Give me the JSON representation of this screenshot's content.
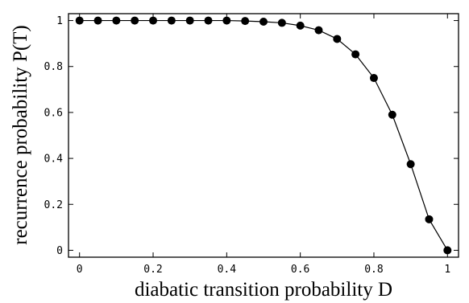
{
  "chart_data": {
    "type": "line",
    "title": "",
    "xlabel": "diabatic transition probability D",
    "ylabel": "recurrence probability  P(T)",
    "xlim": [
      -0.03,
      1.03
    ],
    "ylim": [
      -0.03,
      1.03
    ],
    "grid": false,
    "legend": "none",
    "x_ticks": [
      0,
      0.2,
      0.4,
      0.6,
      0.8,
      1
    ],
    "x_tick_labels": [
      "0",
      "0.2",
      "0.4",
      "0.6",
      "0.8",
      "1"
    ],
    "y_ticks": [
      0,
      0.2,
      0.4,
      0.6,
      0.8,
      1
    ],
    "y_tick_labels": [
      "0",
      "0.2",
      "0.4",
      "0.6",
      "0.8",
      "1"
    ],
    "series": [
      {
        "x": [
          0,
          0.05,
          0.1,
          0.15,
          0.2,
          0.25,
          0.3,
          0.35,
          0.4,
          0.45,
          0.5,
          0.55,
          0.6,
          0.65,
          0.7,
          0.75,
          0.8,
          0.85,
          0.9,
          0.95,
          1
        ],
        "y": [
          1,
          1,
          1,
          1,
          1,
          1,
          1,
          1,
          1,
          0.998,
          0.995,
          0.99,
          0.978,
          0.958,
          0.92,
          0.853,
          0.75,
          0.59,
          0.375,
          0.135,
          0
        ],
        "color": "#000000",
        "marker": "circle"
      }
    ]
  }
}
